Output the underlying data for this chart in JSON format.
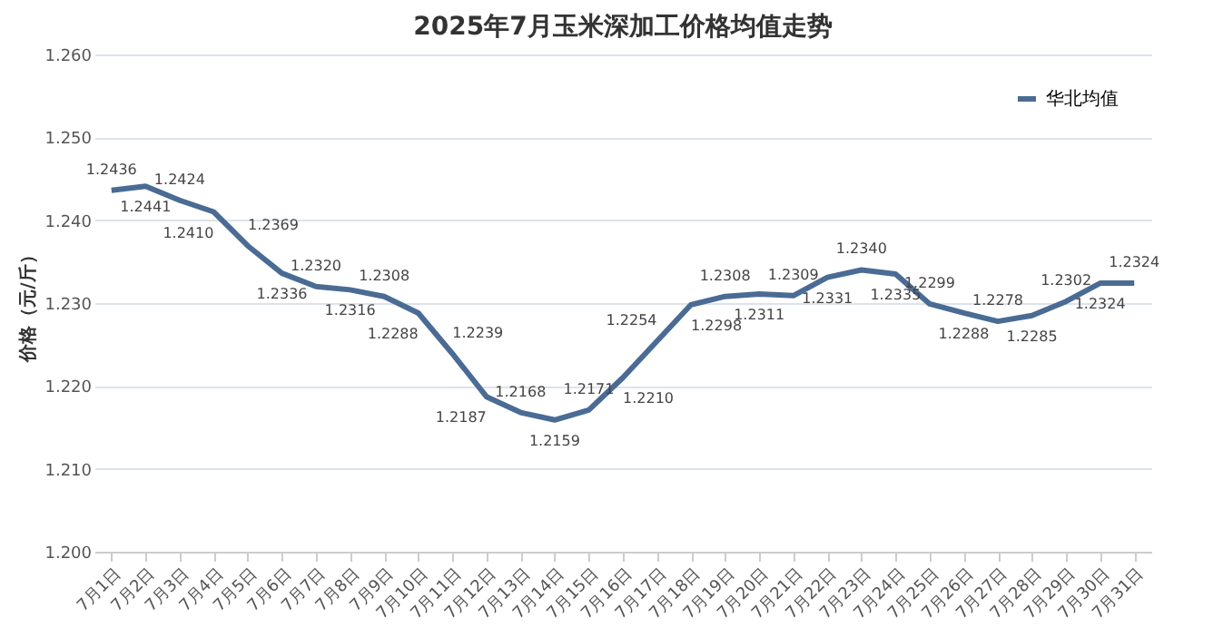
{
  "chart_data": {
    "type": "line",
    "title": "2025年7月玉米深加工价格均值走势",
    "ylabel": "价格（元/斤）",
    "categories": [
      "7月1日",
      "7月2日",
      "7月3日",
      "7月4日",
      "7月5日",
      "7月6日",
      "7月7日",
      "7月8日",
      "7月9日",
      "7月10日",
      "7月11日",
      "7月12日",
      "7月13日",
      "7月14日",
      "7月15日",
      "7月16日",
      "7月17日",
      "7月18日",
      "7月19日",
      "7月20日",
      "7月21日",
      "7月22日",
      "7月23日",
      "7月24日",
      "7月25日",
      "7月26日",
      "7月27日",
      "7月28日",
      "7月29日",
      "7月30日",
      "7月31日"
    ],
    "series": [
      {
        "name": "华北均值",
        "color": "#4a6b94",
        "values": [
          1.2436,
          1.2441,
          1.2424,
          1.241,
          1.2369,
          1.2336,
          1.232,
          1.2316,
          1.2308,
          1.2288,
          1.2239,
          1.2187,
          1.2168,
          1.2159,
          1.2171,
          1.221,
          1.2254,
          1.2298,
          1.2308,
          1.2311,
          1.2309,
          1.2331,
          1.234,
          1.2335,
          1.2299,
          1.2288,
          1.2278,
          1.2285,
          1.2302,
          1.2324,
          1.2324
        ],
        "value_labels": [
          "1.2436",
          "1.2441",
          "1.2424",
          "1.2410",
          "1.2369",
          "1.2336",
          "1.2320",
          "1.2316",
          "1.2308",
          "1.2288",
          "1.2239",
          "1.2187",
          "1.2168",
          "1.2159",
          "1.2171",
          "1.2210",
          "1.2254",
          "1.2298",
          "1.2308",
          "1.2311",
          "1.2309",
          "1.2331",
          "1.2340",
          "1.2335",
          "1.2299",
          "1.2288",
          "1.2278",
          "1.2285",
          "1.2302",
          "1.2324",
          "1.2324"
        ]
      }
    ],
    "ylim": [
      1.2,
      1.26
    ],
    "yticks": [
      {
        "value": 1.2,
        "label": "1.200"
      },
      {
        "value": 1.21,
        "label": "1.210"
      },
      {
        "value": 1.22,
        "label": "1.220"
      },
      {
        "value": 1.23,
        "label": "1.230"
      },
      {
        "value": 1.24,
        "label": "1.240"
      },
      {
        "value": 1.25,
        "label": "1.250"
      },
      {
        "value": 1.26,
        "label": "1.260"
      }
    ],
    "grid": "y",
    "legend": "top right",
    "marker": "none",
    "line_style": "solid"
  }
}
